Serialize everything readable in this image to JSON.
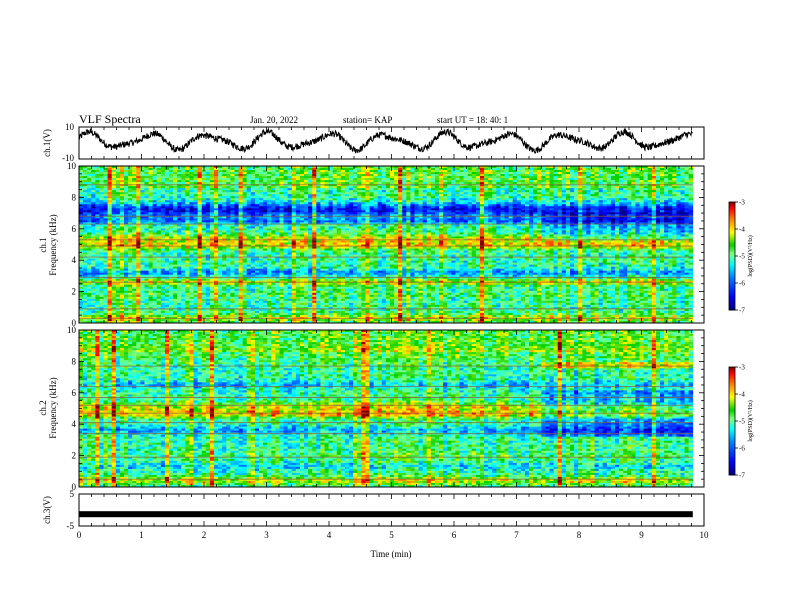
{
  "header": {
    "title": "VLF Spectra",
    "date": "Jan. 20, 2022",
    "station": "station= KAP",
    "start": "start  UT =   18: 40: 1"
  },
  "colors": {
    "colormap": [
      "#00007f",
      "#0000ff",
      "#007fff",
      "#00ffff",
      "#7fff7f",
      "#00d000",
      "#ffff00",
      "#ff7f00",
      "#ff0000",
      "#7f0000"
    ],
    "trace": "#000000"
  },
  "chart_data": [
    {
      "type": "line",
      "name": "ch1-waveform",
      "ylabel": "ch.1(V)",
      "ylim": [
        -10,
        10
      ],
      "y_tick_labels": [
        "10",
        "-10"
      ],
      "xlim": [
        0,
        10
      ],
      "data_end_min": 9.82,
      "description_values": "oscillating signal, approx. -6 to +8 V"
    },
    {
      "type": "heatmap",
      "name": "ch1-spectrogram",
      "ylabel_line1": "ch.1",
      "ylabel_line2": "Frequency (kHz)",
      "ylim": [
        0,
        10
      ],
      "y_ticks": [
        "0",
        "2",
        "4",
        "6",
        "8",
        "10"
      ],
      "xlim": [
        0,
        10
      ],
      "data_end_min": 9.82,
      "colorbar": {
        "label": "log(PSD)(V²/Hz)",
        "range": [
          -7,
          -3
        ],
        "ticks": [
          "-3",
          "-4",
          "-5",
          "-6",
          "-7"
        ]
      }
    },
    {
      "type": "heatmap",
      "name": "ch2-spectrogram",
      "ylabel_line1": "ch.2",
      "ylabel_line2": "Frequency (kHz)",
      "ylim": [
        0,
        10
      ],
      "y_ticks": [
        "0",
        "2",
        "4",
        "6",
        "8",
        "10"
      ],
      "xlim": [
        0,
        10
      ],
      "data_end_min": 9.82,
      "colorbar": {
        "label": "log(PSD)(V²/Hz)",
        "range": [
          -7,
          -3
        ],
        "ticks": [
          "-3",
          "-4",
          "-5",
          "-6",
          "-7"
        ]
      }
    },
    {
      "type": "line",
      "name": "ch3-waveform",
      "ylabel": "ch.3(V)",
      "ylim": [
        -5,
        5
      ],
      "y_tick_labels": [
        "5",
        "-5"
      ],
      "xlim": [
        0,
        10
      ],
      "data_end_min": 9.82,
      "constant_value": -1.3
    }
  ],
  "x_axis": {
    "label": "Time (min)",
    "ticks": [
      "0",
      "1",
      "2",
      "3",
      "4",
      "5",
      "6",
      "7",
      "8",
      "9",
      "10"
    ]
  }
}
